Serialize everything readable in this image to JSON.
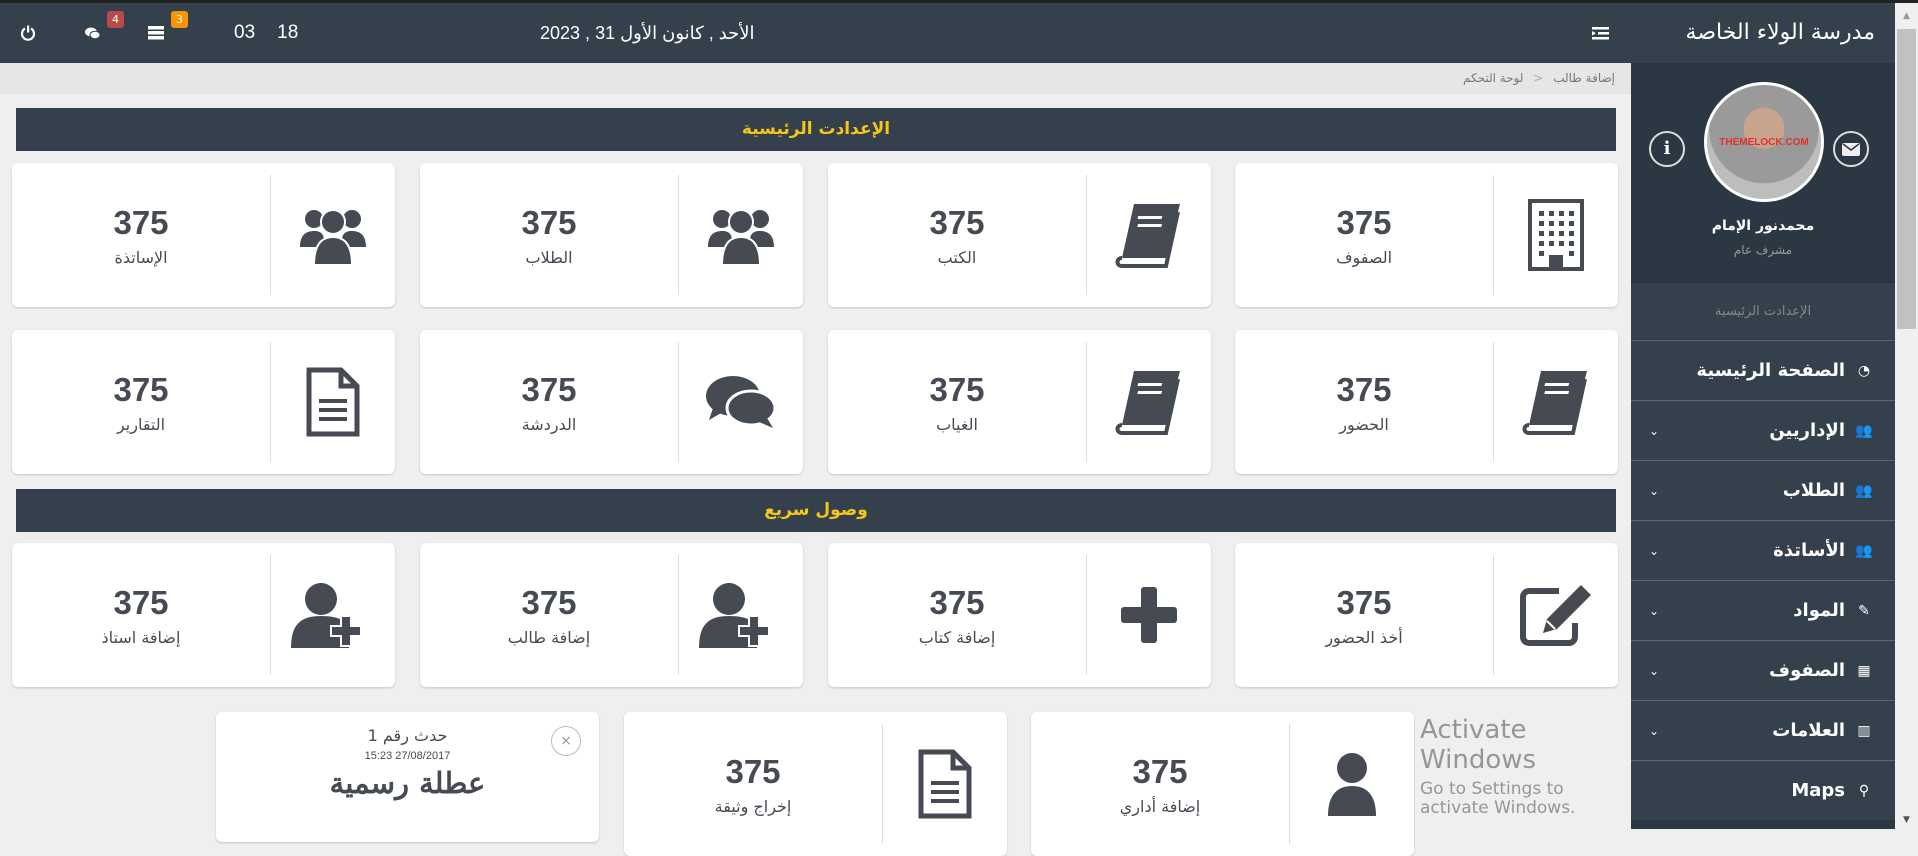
{
  "topbar": {
    "date": "الأحد , كانون الأول 31 , 2023",
    "time_hour": "18",
    "time_min": "03",
    "messages_badge": "4",
    "tasks_badge": "3",
    "badge_colors": {
      "messages": "#b94a48",
      "tasks": "#f89406"
    }
  },
  "breadcrumb": {
    "home": "لوحة التحكم",
    "separator": "<",
    "current": "إضافة طالب"
  },
  "sections": {
    "main": "الإعدادت الرئيسية",
    "quick": "وصول سريع"
  },
  "cards_main": [
    {
      "icon": "building-icon",
      "value": "375",
      "label": "الصفوف"
    },
    {
      "icon": "book-icon",
      "value": "375",
      "label": "الكتب"
    },
    {
      "icon": "users-icon",
      "value": "375",
      "label": "الطلاب"
    },
    {
      "icon": "users-icon",
      "value": "375",
      "label": "الإساتذة"
    },
    {
      "icon": "book-icon",
      "value": "375",
      "label": "الحضور"
    },
    {
      "icon": "book-icon",
      "value": "375",
      "label": "الغياب"
    },
    {
      "icon": "comments-icon",
      "value": "375",
      "label": "الدردشة"
    },
    {
      "icon": "file-text-icon",
      "value": "375",
      "label": "التقارير"
    }
  ],
  "cards_quick": [
    {
      "icon": "edit-icon",
      "value": "375",
      "label": "أخذ الحضور"
    },
    {
      "icon": "plus-icon",
      "value": "375",
      "label": "إضافة كتاب"
    },
    {
      "icon": "user-plus-icon",
      "value": "375",
      "label": "إضافة طالب"
    },
    {
      "icon": "user-plus-icon",
      "value": "375",
      "label": "إضافة استاذ"
    },
    {
      "icon": "user-icon",
      "value": "375",
      "label": "إضافة أداري"
    },
    {
      "icon": "file-text-icon",
      "value": "375",
      "label": "إخراج وثيقة"
    }
  ],
  "event": {
    "title": "حدث رقم 1",
    "datetime": "27/08/2017 15:23",
    "name": "عطلة رسمية"
  },
  "sidebar": {
    "school": "مدرسة الولاء الخاصة",
    "user_name": "محمدنور الإمام",
    "user_role": "مشرف عام",
    "avatar_watermark": "THEMELOCK.COM",
    "section_label": "الإعدادت الرئيسية",
    "items": [
      {
        "label": "الصفحة الرئيسية",
        "icon": "dashboard-icon",
        "glyph": "◔",
        "chevron": false
      },
      {
        "label": "الإداريين",
        "icon": "users-icon",
        "glyph": "👥",
        "chevron": true
      },
      {
        "label": "الطلاب",
        "icon": "users-icon",
        "glyph": "👥",
        "chevron": true
      },
      {
        "label": "الأساتذة",
        "icon": "users-icon",
        "glyph": "👥",
        "chevron": true
      },
      {
        "label": "المواد",
        "icon": "pencil-icon",
        "glyph": "✎",
        "chevron": true
      },
      {
        "label": "الصفوف",
        "icon": "building-icon",
        "glyph": "▦",
        "chevron": true
      },
      {
        "label": "العلامات",
        "icon": "bar-chart-icon",
        "glyph": "▥",
        "chevron": true
      },
      {
        "label": "Maps",
        "icon": "map-marker-icon",
        "glyph": "⚲",
        "chevron": false
      }
    ]
  },
  "watermark": {
    "line1": "Activate Windows",
    "line2": "Go to Settings to activate Windows."
  }
}
